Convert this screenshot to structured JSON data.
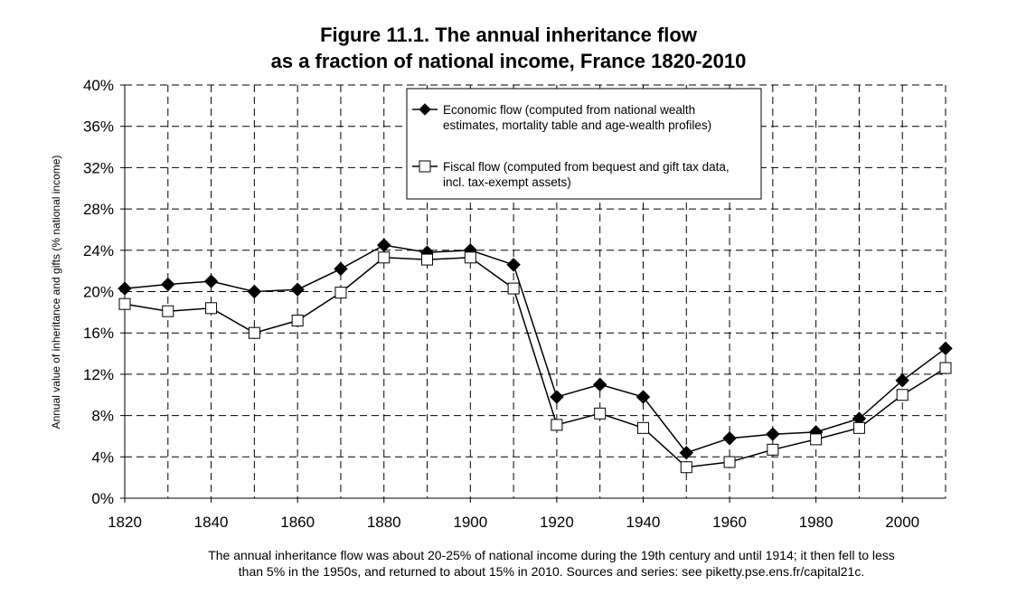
{
  "title": {
    "line1": "Figure 11.1. The annual inheritance flow",
    "line2": "as a fraction of national income, France 1820-2010"
  },
  "caption": {
    "line1": "The annual inheritance flow was about 20-25% of national income during the 19th century and until 1914; it then fell to less",
    "line2": "than 5% in the 1950s, and returned to about 15% in 2010. Sources and series: see piketty.pse.ens.fr/capital21c."
  },
  "chart_data": {
    "type": "line",
    "ylabel": "Annual value of inheritance and gifts (% national income)",
    "xlabel": "",
    "xlim": [
      1820,
      2010
    ],
    "ylim": [
      0,
      0.4
    ],
    "x_ticks": [
      "1820",
      "1840",
      "1860",
      "1880",
      "1900",
      "1920",
      "1940",
      "1960",
      "1980",
      "2000"
    ],
    "y_ticks": [
      "0%",
      "4%",
      "8%",
      "12%",
      "16%",
      "20%",
      "24%",
      "28%",
      "32%",
      "36%",
      "40%"
    ],
    "grid": true,
    "legend_position": "top-center",
    "x": [
      1820,
      1830,
      1840,
      1850,
      1860,
      1870,
      1880,
      1890,
      1900,
      1910,
      1920,
      1930,
      1940,
      1950,
      1960,
      1970,
      1980,
      1990,
      2000,
      2010
    ],
    "series": [
      {
        "name": "Economic flow (computed from national wealth estimates, mortality table and age-wealth profiles)",
        "legend_lines": [
          "Economic flow (computed from national wealth",
          "estimates, mortality table and age-wealth profiles)"
        ],
        "marker": "filled-diamond",
        "values": [
          0.203,
          0.207,
          0.21,
          0.2,
          0.202,
          0.222,
          0.245,
          0.238,
          0.24,
          0.226,
          0.098,
          0.11,
          0.098,
          0.044,
          0.058,
          0.062,
          0.064,
          0.077,
          0.114,
          0.145
        ]
      },
      {
        "name": "Fiscal flow (computed from bequest and gift tax data, incl. tax-exempt assets)",
        "legend_lines": [
          "Fiscal flow (computed from bequest and gift tax data,",
          "incl. tax-exempt assets)"
        ],
        "marker": "open-square",
        "values": [
          0.188,
          0.181,
          0.184,
          0.16,
          0.172,
          0.199,
          0.233,
          0.231,
          0.233,
          0.203,
          0.071,
          0.082,
          0.068,
          0.03,
          0.035,
          0.047,
          0.057,
          0.068,
          0.1,
          0.126
        ]
      }
    ]
  }
}
